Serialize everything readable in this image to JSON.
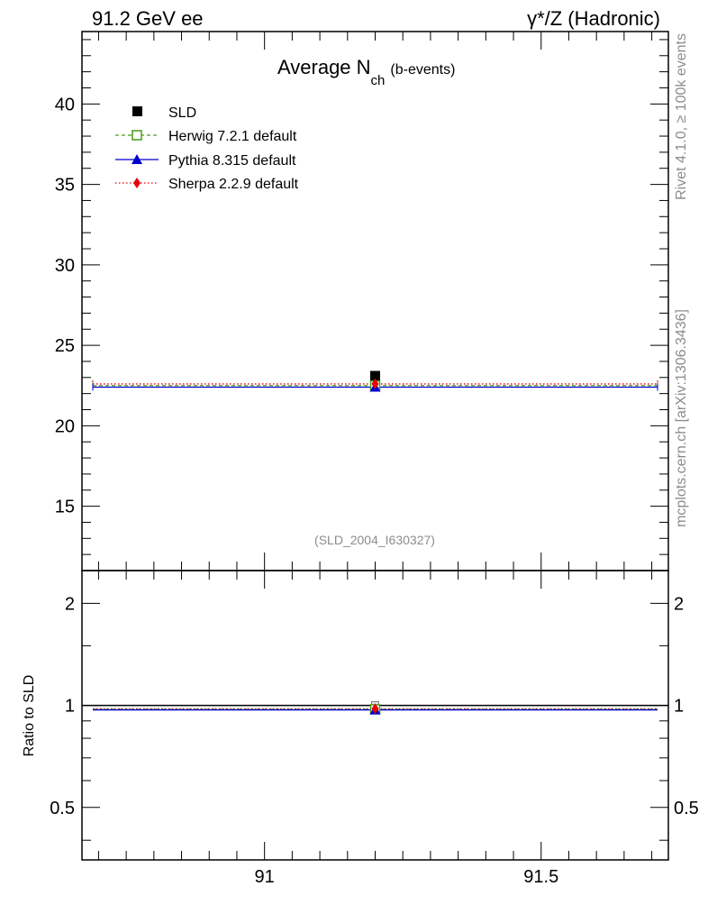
{
  "header": {
    "left": "91.2 GeV ee",
    "right": "γ*/Z (Hadronic)"
  },
  "side": {
    "rivet": "Rivet 4.1.0, ≥ 100k events",
    "mcplots": "mcplots.cern.ch [arXiv:1306.3436]"
  },
  "chart_data": {
    "type": "scatter",
    "title_main": "Average N",
    "title_sub": "ch",
    "title_suffix": "(b-events)",
    "watermark": "(SLD_2004_I630327)",
    "xlim": [
      90.67,
      91.73
    ],
    "xticks": [
      91,
      91.5
    ],
    "xtick_labels": [
      "91",
      "91.5"
    ],
    "main": {
      "ylim": [
        11,
        44.5
      ],
      "yticks": [
        15,
        20,
        25,
        30,
        35,
        40
      ],
      "ytick_labels": [
        "15",
        "20",
        "25",
        "30",
        "35",
        "40"
      ]
    },
    "ratio": {
      "ylabel": "Ratio to SLD",
      "log": true,
      "ylim": [
        0.35,
        2.5
      ],
      "yticks": [
        0.5,
        1,
        2
      ],
      "ytick_labels": [
        "0.5",
        "1",
        "2"
      ]
    },
    "data_point": {
      "name": "SLD",
      "x": 91.2,
      "y": 23.1
    },
    "series": [
      {
        "name": "SLD",
        "marker": "filled-square",
        "color": "#000000",
        "value": 23.1
      },
      {
        "name": "Herwig 7.2.1 default",
        "marker": "open-square",
        "line": "dashed",
        "color": "#4a9a1a",
        "value": 22.5,
        "ratio": 0.974
      },
      {
        "name": "Pythia 8.315 default",
        "marker": "triangle",
        "line": "solid",
        "color": "#0000cc",
        "value": 22.4,
        "ratio": 0.97
      },
      {
        "name": "Sherpa 2.2.9 default",
        "marker": "diamond",
        "line": "dotted",
        "color": "#e8000b",
        "value": 22.6,
        "ratio": 0.978
      }
    ]
  }
}
